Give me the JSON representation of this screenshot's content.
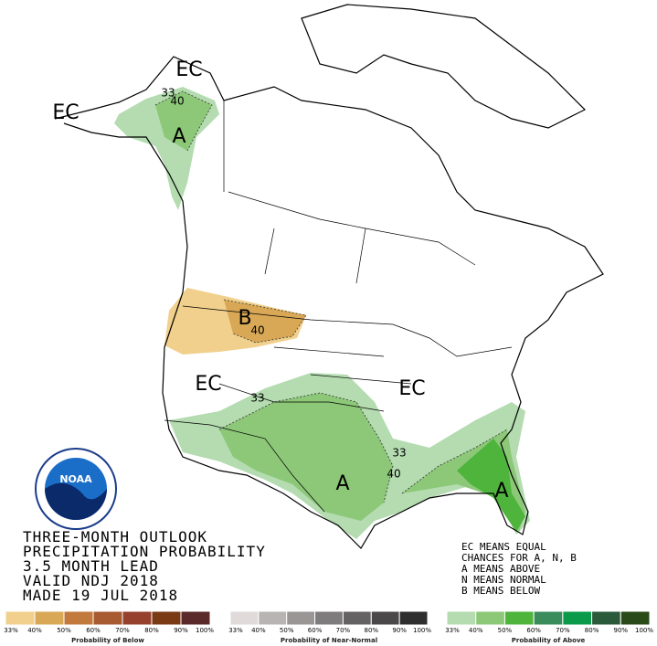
{
  "map": {
    "labels": [
      "EC",
      "EC",
      "33",
      "40",
      "A",
      "B",
      "40",
      "EC",
      "33",
      "EC",
      "33",
      "40",
      "A",
      "A"
    ]
  },
  "logo": "NOAA",
  "title": {
    "lines": [
      "THREE-MONTH OUTLOOK",
      "PRECIPITATION PROBABILITY",
      "3.5 MONTH LEAD",
      "VALID NDJ 2018",
      "MADE 19 JUL 2018"
    ]
  },
  "key": {
    "lines": [
      "EC MEANS EQUAL",
      "CHANCES FOR A, N, B",
      "A MEANS ABOVE",
      "N MEANS NORMAL",
      "B MEANS BELOW"
    ]
  },
  "scales": [
    {
      "caption": "Probability of Below",
      "ticks": [
        "33%",
        "40%",
        "50%",
        "60%",
        "70%",
        "80%",
        "90%",
        "100%"
      ],
      "colors": [
        "#f0d08c",
        "#d8a856",
        "#c27a3c",
        "#a85a30",
        "#96402e",
        "#7a3a14",
        "#5a2a2a"
      ]
    },
    {
      "caption": "Probability of Near-Normal",
      "ticks": [
        "33%",
        "40%",
        "50%",
        "60%",
        "70%",
        "80%",
        "90%",
        "100%"
      ],
      "colors": [
        "#e0dada",
        "#b8b4b4",
        "#9a9696",
        "#7e7c7c",
        "#646262",
        "#4a4848",
        "#2e2e2e"
      ]
    },
    {
      "caption": "Probability of Above",
      "ticks": [
        "33%",
        "40%",
        "50%",
        "60%",
        "70%",
        "80%",
        "90%",
        "100%"
      ],
      "colors": [
        "#b4dcb0",
        "#8cc878",
        "#4eb43c",
        "#3a8c5c",
        "#0a9a4a",
        "#2a5a3a",
        "#2a4a1a"
      ]
    }
  ]
}
